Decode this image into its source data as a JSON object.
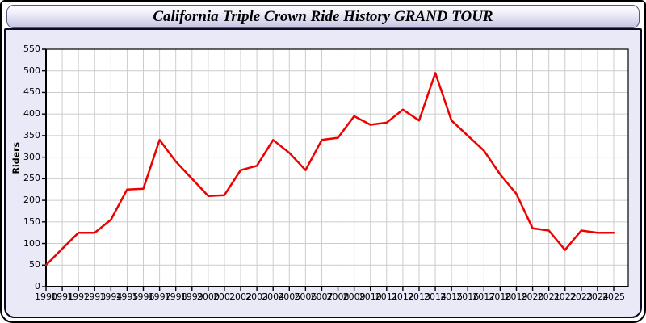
{
  "window": {
    "title": "California Triple Crown Ride History GRAND TOUR"
  },
  "colors": {
    "line": "#ee0000",
    "plot_bg": "#ffffff",
    "grid": "#cccccc",
    "axis": "#000000",
    "panel_bg": "#e9e9f8",
    "titlebar_top": "#ffffff",
    "titlebar_bottom": "#c6c6e2"
  },
  "chart_data": {
    "type": "line",
    "title": "California Triple Crown Ride History GRAND TOUR",
    "xlabel": "",
    "ylabel": "Riders",
    "ylim": [
      0,
      550
    ],
    "ytick_interval": 50,
    "grid": true,
    "legend_position": "none",
    "x": [
      1990,
      1991,
      1992,
      1993,
      1994,
      1995,
      1996,
      1997,
      1998,
      1999,
      2000,
      2001,
      2002,
      2003,
      2004,
      2005,
      2006,
      2007,
      2008,
      2009,
      2010,
      2011,
      2012,
      2013,
      2014,
      2015,
      2016,
      2017,
      2018,
      2019,
      2020,
      2021,
      2022,
      2023,
      2024,
      2025
    ],
    "series": [
      {
        "name": "Riders",
        "color": "#ee0000",
        "values": [
          50,
          88,
          125,
          125,
          155,
          225,
          227,
          340,
          290,
          250,
          210,
          212,
          270,
          280,
          340,
          310,
          270,
          340,
          345,
          395,
          375,
          380,
          410,
          385,
          495,
          385,
          350,
          315,
          260,
          215,
          135,
          130,
          85,
          130,
          125,
          125
        ]
      }
    ]
  }
}
